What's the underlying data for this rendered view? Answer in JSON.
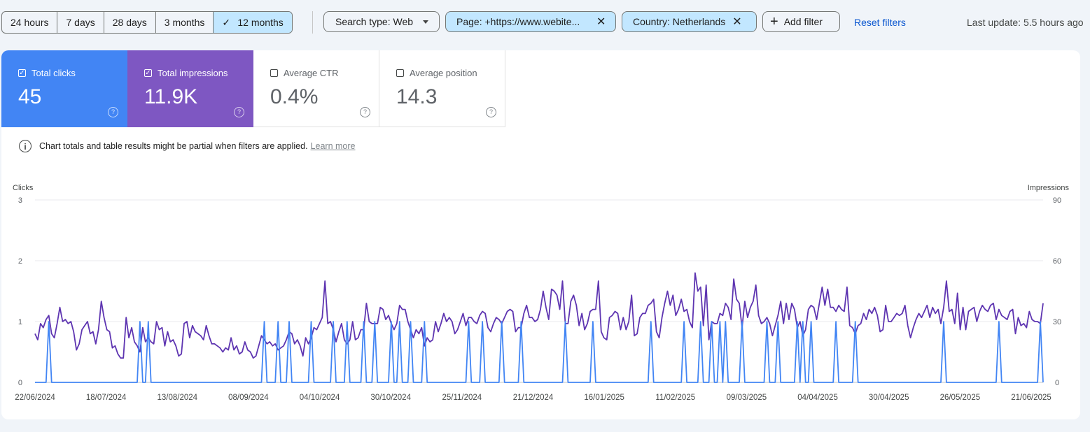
{
  "date_range": {
    "options": [
      "24 hours",
      "7 days",
      "28 days",
      "3 months",
      "12 months"
    ],
    "selected": "12 months"
  },
  "filters": {
    "search_type": "Search type: Web",
    "page": "Page: +https://www.webite...",
    "country": "Country: Netherlands",
    "add_filter": "Add filter",
    "reset": "Reset filters"
  },
  "last_update": "Last update: 5.5 hours ago",
  "metrics": {
    "clicks": {
      "label": "Total clicks",
      "value": "45",
      "checked": true,
      "color": "#4285f4"
    },
    "impressions": {
      "label": "Total impressions",
      "value": "11.9K",
      "checked": true,
      "color": "#7e57c2"
    },
    "ctr": {
      "label": "Average CTR",
      "value": "0.4%",
      "checked": false
    },
    "position": {
      "label": "Average position",
      "value": "14.3",
      "checked": false
    }
  },
  "notice": {
    "text": "Chart totals and table results might be partial when filters are applied.",
    "link": "Learn more"
  },
  "chart_data": {
    "type": "line",
    "y_left_label": "Clicks",
    "y_right_label": "Impressions",
    "y_left_ticks": [
      0,
      1,
      2,
      3
    ],
    "y_right_ticks": [
      0,
      30,
      60,
      90
    ],
    "ylim_left": [
      0,
      3
    ],
    "ylim_right": [
      0,
      90
    ],
    "x_tick_labels": [
      "22/06/2024",
      "18/07/2024",
      "13/08/2024",
      "08/09/2024",
      "04/10/2024",
      "30/10/2024",
      "25/11/2024",
      "21/12/2024",
      "16/01/2025",
      "11/02/2025",
      "09/03/2025",
      "04/04/2025",
      "30/04/2025",
      "26/05/2025",
      "21/06/2025"
    ],
    "grid": true,
    "series": [
      {
        "name": "Impressions",
        "axis": "right",
        "color": "#5e35b1",
        "values": [
          24,
          21,
          29,
          27,
          31,
          33,
          24,
          22,
          29,
          37,
          30,
          31,
          29,
          30,
          25,
          16,
          19,
          26,
          28,
          30,
          24,
          25,
          19,
          26,
          40,
          32,
          26,
          25,
          17,
          18,
          14,
          12,
          12,
          32,
          22,
          27,
          20,
          18,
          15,
          27,
          20,
          22,
          20,
          19,
          30,
          26,
          27,
          18,
          25,
          20,
          21,
          18,
          13,
          14,
          29,
          30,
          22,
          28,
          25,
          24,
          23,
          21,
          28,
          23,
          19,
          19,
          18,
          17,
          15,
          17,
          16,
          22,
          16,
          18,
          14,
          15,
          20,
          16,
          15,
          12,
          13,
          18,
          23,
          21,
          19,
          20,
          18,
          19,
          16,
          17,
          18,
          21,
          25,
          24,
          19,
          21,
          18,
          13,
          22,
          19,
          22,
          27,
          26,
          29,
          32,
          50,
          29,
          30,
          26,
          20,
          25,
          29,
          21,
          19,
          21,
          30,
          21,
          22,
          26,
          26,
          39,
          30,
          29,
          29,
          29,
          37,
          36,
          31,
          33,
          29,
          26,
          29,
          38,
          36,
          36,
          30,
          26,
          22,
          26,
          24,
          27,
          18,
          22,
          20,
          21,
          30,
          25,
          29,
          34,
          30,
          32,
          30,
          24,
          26,
          30,
          34,
          28,
          32,
          32,
          30,
          29,
          33,
          35,
          34,
          27,
          25,
          29,
          32,
          31,
          29,
          32,
          35,
          36,
          35,
          25,
          27,
          27,
          34,
          38,
          32,
          32,
          30,
          31,
          36,
          45,
          37,
          31,
          46,
          45,
          43,
          36,
          50,
          29,
          29,
          40,
          43,
          38,
          28,
          34,
          26,
          29,
          35,
          36,
          36,
          50,
          25,
          22,
          21,
          32,
          33,
          35,
          34,
          26,
          32,
          26,
          30,
          43,
          23,
          24,
          32,
          34,
          34,
          38,
          39,
          41,
          25,
          22,
          32,
          39,
          45,
          38,
          43,
          33,
          36,
          41,
          35,
          36,
          30,
          27,
          54,
          45,
          47,
          28,
          48,
          21,
          30,
          29,
          29,
          34,
          33,
          39,
          37,
          31,
          51,
          41,
          39,
          27,
          40,
          32,
          37,
          40,
          48,
          33,
          29,
          30,
          32,
          29,
          23,
          28,
          33,
          40,
          29,
          39,
          31,
          39,
          36,
          27,
          30,
          23,
          26,
          36,
          38,
          37,
          31,
          39,
          47,
          38,
          46,
          37,
          37,
          35,
          38,
          36,
          35,
          47,
          28,
          27,
          24,
          28,
          29,
          34,
          31,
          36,
          34,
          37,
          33,
          25,
          26,
          38,
          30,
          30,
          32,
          34,
          33,
          34,
          38,
          28,
          22,
          27,
          31,
          34,
          32,
          35,
          38,
          32,
          37,
          34,
          36,
          29,
          37,
          50,
          35,
          36,
          29,
          44,
          26,
          37,
          26,
          35,
          36,
          37,
          30,
          35,
          38,
          36,
          35,
          38,
          39,
          31,
          36,
          33,
          32,
          31,
          35,
          36,
          24,
          32,
          28,
          29,
          27,
          35,
          31,
          30,
          30,
          29,
          39,
          38,
          43,
          38,
          39,
          29,
          36,
          43,
          44,
          30,
          29,
          32,
          31,
          35,
          36,
          28,
          29,
          26,
          36,
          29,
          27,
          35,
          36,
          34,
          31,
          40,
          34,
          34,
          32,
          38,
          27,
          30,
          30,
          40,
          36,
          44,
          43,
          42,
          41,
          28,
          30,
          34,
          40,
          32,
          37,
          33,
          36,
          30,
          29,
          34,
          28,
          32,
          28,
          34,
          31,
          34,
          30,
          29,
          38,
          40,
          38,
          35,
          40,
          35,
          36,
          32,
          30,
          29,
          33,
          30,
          28,
          27,
          30,
          32,
          36,
          35,
          36,
          33,
          28,
          27,
          30,
          34,
          34,
          38,
          34,
          33,
          30,
          35,
          27,
          28,
          33,
          28,
          30,
          33,
          35,
          37,
          34,
          29,
          32,
          33,
          39,
          33,
          33,
          31,
          29,
          27,
          32,
          30,
          37,
          33,
          39,
          34,
          40,
          32,
          31,
          27,
          39,
          29,
          32,
          30,
          38,
          31,
          37,
          30,
          40,
          31,
          28,
          40,
          33,
          36,
          32,
          38,
          33,
          35,
          32,
          35,
          29,
          26,
          30,
          36,
          38,
          36,
          33,
          32,
          34,
          28,
          29,
          27,
          33,
          36,
          46,
          32,
          36,
          32,
          30,
          34,
          29,
          32,
          33,
          35,
          31,
          30,
          36,
          30,
          36,
          28,
          30,
          28,
          24,
          31,
          25,
          29,
          37,
          40,
          38,
          36,
          29,
          30,
          33,
          27,
          31,
          46,
          59,
          76,
          68,
          58,
          52,
          54,
          46,
          48,
          36,
          34,
          32,
          29,
          30,
          37,
          43,
          45,
          55,
          38,
          37,
          34,
          36,
          34,
          32,
          30,
          33,
          29,
          31,
          30,
          32,
          28,
          26,
          31,
          34,
          39,
          42,
          36,
          34,
          29,
          33,
          38,
          44,
          54,
          51,
          42,
          36,
          30,
          39,
          40,
          35,
          34,
          33,
          30,
          27,
          29,
          32,
          35,
          39,
          36,
          40,
          34,
          37,
          35,
          32,
          36,
          30,
          33,
          37,
          43,
          32,
          36,
          41,
          33,
          28,
          29,
          25,
          27,
          36,
          36,
          30,
          27,
          32,
          30,
          36,
          34,
          30,
          31,
          29,
          33,
          36,
          43,
          48,
          47,
          36,
          33,
          30,
          32,
          34,
          43,
          35,
          37,
          31,
          28,
          30,
          26,
          27,
          37,
          31,
          29,
          38,
          34,
          32,
          31,
          30,
          34,
          29,
          30,
          32,
          36,
          38,
          35,
          34,
          28,
          29,
          33,
          37,
          39,
          31,
          35,
          32,
          28,
          31,
          25,
          28,
          34,
          32,
          33,
          37,
          43,
          55,
          63,
          56,
          48,
          43,
          40,
          37,
          33,
          30,
          29,
          35,
          42,
          40,
          36,
          33,
          36,
          37,
          30,
          31,
          33,
          35,
          34,
          30,
          32,
          34,
          37,
          32,
          35,
          29,
          28,
          32,
          35,
          39,
          36,
          30,
          34,
          31,
          31,
          35,
          30,
          33,
          36,
          37,
          34,
          36,
          39,
          42,
          40,
          33,
          29,
          30,
          34,
          32,
          35,
          31,
          29,
          37,
          34,
          33,
          32,
          29,
          36,
          33,
          30,
          35,
          31,
          30,
          34,
          32,
          28,
          30,
          34,
          33,
          29,
          33,
          31,
          36,
          35,
          32,
          37,
          42,
          40,
          38,
          30,
          29,
          34,
          36,
          38,
          34,
          33,
          31,
          36,
          39,
          30,
          29,
          31,
          34,
          37,
          33,
          28,
          29,
          30,
          32,
          33,
          36,
          34,
          31,
          28,
          30,
          34,
          37,
          40,
          39,
          37,
          35,
          33,
          35,
          32,
          30,
          27,
          29,
          34,
          36,
          31,
          28,
          33,
          37,
          41,
          40,
          36,
          33,
          29,
          31,
          34,
          38,
          43,
          36,
          31,
          29,
          27,
          30,
          33,
          35,
          34,
          36,
          30,
          29,
          31,
          36,
          42,
          38,
          34,
          30,
          28,
          33,
          37,
          35,
          31,
          30,
          33,
          36,
          38,
          36,
          33,
          30,
          28,
          30,
          33,
          35,
          36,
          33,
          30,
          31,
          35,
          38,
          35,
          31,
          30,
          32,
          36,
          40,
          44,
          39,
          33,
          30,
          29,
          32,
          35,
          37,
          34,
          30,
          31,
          34,
          36,
          33,
          31,
          34,
          38,
          37,
          33,
          30,
          32,
          35,
          39,
          42,
          37,
          32,
          30,
          29,
          31,
          34,
          36,
          35,
          33,
          31,
          30,
          32,
          34,
          37,
          36,
          34,
          32,
          30,
          31,
          34,
          36,
          38,
          35,
          33,
          32,
          30,
          31
        ]
      },
      {
        "name": "Clicks",
        "axis": "left",
        "color": "#4285f4",
        "values": []
      }
    ]
  }
}
